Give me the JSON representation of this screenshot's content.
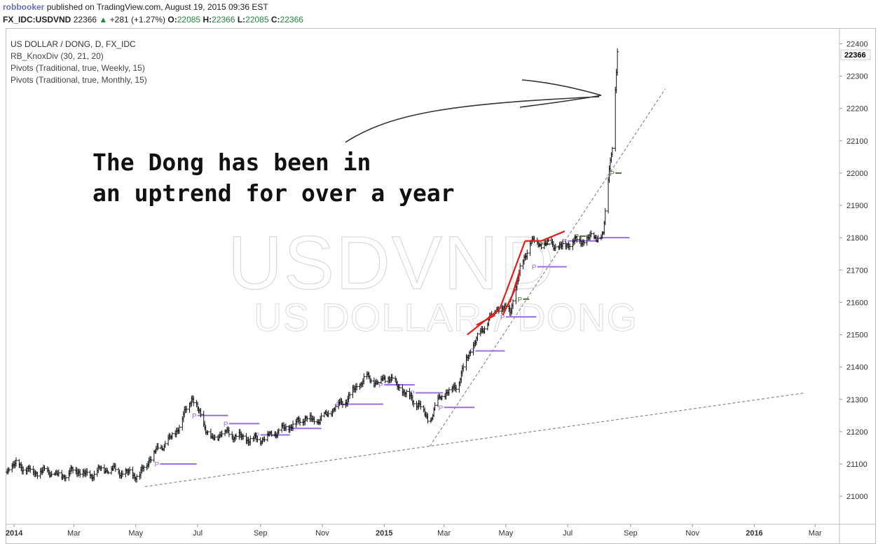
{
  "header": {
    "author": "robbooker",
    "published_text": "published on TradingView.com, August 19, 2015 09:36 EST",
    "symbol": "FX_IDC:USDVND",
    "last": "22366",
    "change": "+281 (+1.27%)",
    "ohlc": {
      "o_label": "O:",
      "o": "22085",
      "h_label": "H:",
      "h": "22366",
      "l_label": "L:",
      "l": "22085",
      "c_label": "C:",
      "c": "22366"
    },
    "colors": {
      "author": "#6a6fb5",
      "up": "#1e8a3a"
    }
  },
  "legend": {
    "title": "US DOLLAR / DONG, D, FX_IDC",
    "lines": [
      "RB_KnoxDiv (30, 21, 20)",
      "Pivots (Traditional, true, Weekly, 15)",
      "Pivots (Traditional, true, Monthly, 15)"
    ]
  },
  "annotation": {
    "line1": "The Dong has been in",
    "line2": "an uptrend for over a year"
  },
  "watermark": {
    "symbol": "USDVND",
    "name": "US DOLLAR / DONG"
  },
  "chart_data": {
    "type": "ohlc-bar",
    "title": "US DOLLAR / DONG, D, FX_IDC",
    "xlabel": "",
    "ylabel": "",
    "ylim": [
      20920,
      22440
    ],
    "xlim": [
      "2013-12-25",
      "2016-03-25"
    ],
    "grid": false,
    "last_price_label": "22366",
    "y_ticks": [
      21000,
      21100,
      21200,
      21300,
      21400,
      21500,
      21600,
      21700,
      21800,
      21900,
      22000,
      22100,
      22200,
      22300,
      22400
    ],
    "x_ticks": [
      {
        "date": "2014-01-01",
        "label": "2014",
        "bold": true
      },
      {
        "date": "2014-03-01",
        "label": "Mar"
      },
      {
        "date": "2014-05-01",
        "label": "May"
      },
      {
        "date": "2014-07-01",
        "label": "Jul"
      },
      {
        "date": "2014-09-01",
        "label": "Sep"
      },
      {
        "date": "2014-11-01",
        "label": "Nov"
      },
      {
        "date": "2015-01-01",
        "label": "2015",
        "bold": true
      },
      {
        "date": "2015-03-01",
        "label": "Mar"
      },
      {
        "date": "2015-05-01",
        "label": "May"
      },
      {
        "date": "2015-07-01",
        "label": "Jul"
      },
      {
        "date": "2015-09-01",
        "label": "Sep"
      },
      {
        "date": "2015-11-01",
        "label": "Nov"
      },
      {
        "date": "2016-01-01",
        "label": "2016",
        "bold": true
      },
      {
        "date": "2016-03-01",
        "label": "Mar"
      }
    ],
    "series": [
      {
        "values": [
          [
            "2013-12-25",
            21085
          ],
          [
            "2014-01-05",
            21100
          ],
          [
            "2014-01-15",
            21080
          ],
          [
            "2014-01-25",
            21075
          ],
          [
            "2014-02-05",
            21075
          ],
          [
            "2014-02-15",
            21060
          ],
          [
            "2014-02-25",
            21075
          ],
          [
            "2014-03-05",
            21082
          ],
          [
            "2014-03-15",
            21060
          ],
          [
            "2014-03-25",
            21080
          ],
          [
            "2014-04-05",
            21085
          ],
          [
            "2014-04-15",
            21075
          ],
          [
            "2014-04-25",
            21070
          ],
          [
            "2014-05-05",
            21065
          ],
          [
            "2014-05-15",
            21120
          ],
          [
            "2014-05-25",
            21150
          ],
          [
            "2014-06-05",
            21180
          ],
          [
            "2014-06-15",
            21230
          ],
          [
            "2014-06-25",
            21310
          ],
          [
            "2014-07-05",
            21240
          ],
          [
            "2014-07-15",
            21170
          ],
          [
            "2014-07-25",
            21200
          ],
          [
            "2014-08-05",
            21190
          ],
          [
            "2014-08-15",
            21180
          ],
          [
            "2014-08-25",
            21175
          ],
          [
            "2014-09-05",
            21180
          ],
          [
            "2014-09-15",
            21195
          ],
          [
            "2014-09-25",
            21210
          ],
          [
            "2014-10-05",
            21225
          ],
          [
            "2014-10-15",
            21245
          ],
          [
            "2014-10-25",
            21230
          ],
          [
            "2014-11-05",
            21250
          ],
          [
            "2014-11-15",
            21280
          ],
          [
            "2014-11-25",
            21300
          ],
          [
            "2014-12-05",
            21340
          ],
          [
            "2014-12-15",
            21370
          ],
          [
            "2014-12-25",
            21350
          ],
          [
            "2015-01-05",
            21370
          ],
          [
            "2015-01-15",
            21340
          ],
          [
            "2015-01-25",
            21310
          ],
          [
            "2015-02-05",
            21280
          ],
          [
            "2015-02-15",
            21230
          ],
          [
            "2015-02-25",
            21310
          ],
          [
            "2015-03-05",
            21320
          ],
          [
            "2015-03-15",
            21350
          ],
          [
            "2015-03-25",
            21440
          ],
          [
            "2015-04-05",
            21500
          ],
          [
            "2015-04-15",
            21550
          ],
          [
            "2015-04-25",
            21590
          ],
          [
            "2015-05-05",
            21570
          ],
          [
            "2015-05-15",
            21700
          ],
          [
            "2015-05-25",
            21790
          ],
          [
            "2015-06-05",
            21780
          ],
          [
            "2015-06-15",
            21780
          ],
          [
            "2015-06-25",
            21770
          ],
          [
            "2015-07-05",
            21790
          ],
          [
            "2015-07-15",
            21790
          ],
          [
            "2015-07-25",
            21800
          ],
          [
            "2015-08-05",
            21805
          ],
          [
            "2015-08-11",
            22020
          ],
          [
            "2015-08-14",
            22090
          ],
          [
            "2015-08-19",
            22366
          ]
        ]
      }
    ],
    "trendlines": [
      {
        "style": "dashed",
        "from": [
          "2014-05-10",
          21030
        ],
        "to": [
          "2016-02-20",
          21320
        ]
      },
      {
        "style": "dashed",
        "from": [
          "2015-02-15",
          21155
        ],
        "to": [
          "2015-10-05",
          22260
        ]
      }
    ],
    "divergence_lines": [
      {
        "from": [
          "2015-03-24",
          21500
        ],
        "to": [
          "2015-04-25",
          21580
        ]
      },
      {
        "from": [
          "2015-04-02",
          21530
        ],
        "to": [
          "2015-04-20",
          21560
        ]
      },
      {
        "from": [
          "2015-04-25",
          21580
        ],
        "to": [
          "2015-05-20",
          21790
        ]
      },
      {
        "from": [
          "2015-04-28",
          21560
        ],
        "to": [
          "2015-05-10",
          21640
        ]
      },
      {
        "from": [
          "2015-05-05",
          21600
        ],
        "to": [
          "2015-05-15",
          21700
        ]
      },
      {
        "from": [
          "2015-05-20",
          21790
        ],
        "to": [
          "2015-06-05",
          21790
        ]
      },
      {
        "from": [
          "2015-06-05",
          21790
        ],
        "to": [
          "2015-06-28",
          21820
        ]
      }
    ],
    "pivots": [
      {
        "level": 21100,
        "from": "2014-05-25",
        "to": "2014-06-30",
        "marker": "P",
        "color": "#9a6de0"
      },
      {
        "level": 21250,
        "from": "2014-07-01",
        "to": "2014-07-31",
        "marker": "P",
        "color": "#9a6de0"
      },
      {
        "level": 21225,
        "from": "2014-08-01",
        "to": "2014-08-31",
        "marker": "P",
        "color": "#9a6de0"
      },
      {
        "level": 21190,
        "from": "2014-09-01",
        "to": "2014-09-30",
        "marker": "P",
        "color": "#9a6de0"
      },
      {
        "level": 21210,
        "from": "2014-10-01",
        "to": "2014-10-31",
        "marker": "P",
        "color": "#9a6de0"
      },
      {
        "level": 21285,
        "from": "2014-11-20",
        "to": "2014-12-31",
        "marker": "P",
        "color": "#9a6de0"
      },
      {
        "level": 21345,
        "from": "2015-01-01",
        "to": "2015-01-31",
        "marker": "P",
        "color": "#9a6de0"
      },
      {
        "level": 21320,
        "from": "2015-02-01",
        "to": "2015-02-28",
        "marker": "P",
        "color": "#9a6de0"
      },
      {
        "level": 21275,
        "from": "2015-03-01",
        "to": "2015-03-31",
        "marker": "P",
        "color": "#9a6de0"
      },
      {
        "level": 21450,
        "from": "2015-04-01",
        "to": "2015-04-30",
        "marker": "P",
        "color": "#9a6de0"
      },
      {
        "level": 21555,
        "from": "2015-05-01",
        "to": "2015-05-31",
        "marker": "P",
        "color": "#9a6de0"
      },
      {
        "level": 21710,
        "from": "2015-06-01",
        "to": "2015-06-30",
        "marker": "P",
        "color": "#9a6de0"
      },
      {
        "level": 21790,
        "from": "2015-07-01",
        "to": "2015-07-31",
        "marker": "P",
        "color": "#9a6de0"
      },
      {
        "level": 21800,
        "from": "2015-08-01",
        "to": "2015-08-31",
        "marker": "P",
        "color": "#9a6de0"
      },
      {
        "level": 21610,
        "from": "2015-05-18",
        "to": "2015-05-24",
        "marker": "P",
        "color": "#4b6b3a"
      },
      {
        "level": 21780,
        "from": "2015-06-08",
        "to": "2015-06-14",
        "marker": "P",
        "color": "#4b6b3a"
      },
      {
        "level": 21805,
        "from": "2015-07-13",
        "to": "2015-07-19",
        "marker": "P",
        "color": "#4b6b3a"
      },
      {
        "level": 22000,
        "from": "2015-08-17",
        "to": "2015-08-23",
        "marker": "P",
        "color": "#4b6b3a"
      }
    ]
  }
}
